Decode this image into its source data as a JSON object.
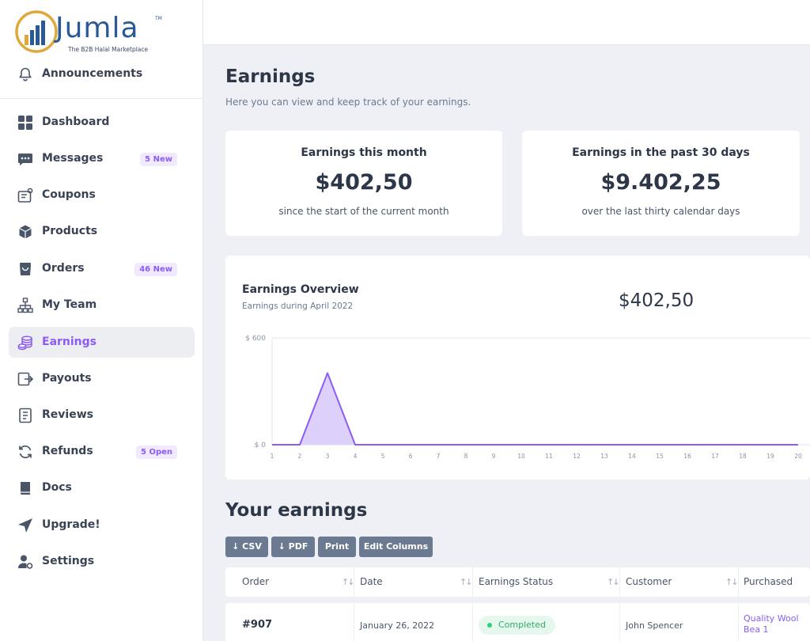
{
  "brand": {
    "name": "Jumla",
    "tagline": "The B2B Halal Marketplace",
    "tm": "TM",
    "colors": {
      "primary": "#2a5a96",
      "ring": "#e0a83a",
      "accent": "#8b5cf6"
    }
  },
  "sidebar": {
    "items": [
      {
        "label": "Announcements",
        "icon": "bell-icon",
        "badge": ""
      },
      {
        "label": "Dashboard",
        "icon": "grid-icon",
        "badge": ""
      },
      {
        "label": "Messages",
        "icon": "chat-icon",
        "badge": "5 New"
      },
      {
        "label": "Coupons",
        "icon": "coupon-icon",
        "badge": ""
      },
      {
        "label": "Products",
        "icon": "box-icon",
        "badge": ""
      },
      {
        "label": "Orders",
        "icon": "bag-icon",
        "badge": "46 New"
      },
      {
        "label": "My Team",
        "icon": "org-chart-icon",
        "badge": ""
      },
      {
        "label": "Earnings",
        "icon": "coins-icon",
        "badge": "",
        "active": true
      },
      {
        "label": "Payouts",
        "icon": "payout-icon",
        "badge": ""
      },
      {
        "label": "Reviews",
        "icon": "review-icon",
        "badge": ""
      },
      {
        "label": "Refunds",
        "icon": "refresh-icon",
        "badge": "5 Open"
      },
      {
        "label": "Docs",
        "icon": "book-icon",
        "badge": ""
      },
      {
        "label": "Upgrade!",
        "icon": "send-icon",
        "badge": ""
      },
      {
        "label": "Settings",
        "icon": "user-gear-icon",
        "badge": ""
      }
    ]
  },
  "page": {
    "title": "Earnings",
    "subtitle": "Here you can view and keep track of your earnings."
  },
  "stats": [
    {
      "title": "Earnings this month",
      "value": "$402,50",
      "desc": "since the start of the current month"
    },
    {
      "title": "Earnings in the past 30 days",
      "value": "$9.402,25",
      "desc": "over the last thirty calendar days"
    }
  ],
  "overview": {
    "title": "Earnings Overview",
    "subtitle": "Earnings during April 2022",
    "total": "$402,50"
  },
  "chart_data": {
    "type": "area",
    "title": "Earnings Overview",
    "x": [
      1,
      2,
      3,
      4,
      5,
      6,
      7,
      8,
      9,
      10,
      11,
      12,
      13,
      14,
      15,
      16,
      17,
      18,
      19,
      20
    ],
    "values": [
      0,
      0,
      402.5,
      0,
      0,
      0,
      0,
      0,
      0,
      0,
      0,
      0,
      0,
      0,
      0,
      0,
      0,
      0,
      0,
      0
    ],
    "ylim": [
      0,
      600
    ],
    "y_ticks": [
      "$ 0",
      "$ 600"
    ],
    "grid": false,
    "color": "#8b5cf6",
    "fill": "#ddd1fb"
  },
  "earnings_section": {
    "title": "Your earnings",
    "buttons": [
      "↓ CSV",
      "↓ PDF",
      "Print",
      "Edit Columns"
    ]
  },
  "table": {
    "columns": [
      "Order",
      "Date",
      "Earnings Status",
      "Customer",
      "Purchased"
    ],
    "sort_glyph": "↑↓",
    "rows": [
      {
        "order": "#907",
        "date": "January 26, 2022",
        "status": "Completed",
        "customer": "John Spencer",
        "purchased": "Quality Wool Bea 1"
      }
    ]
  }
}
